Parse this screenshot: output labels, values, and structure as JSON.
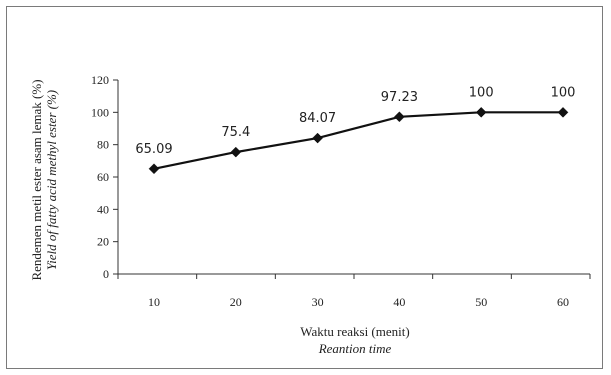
{
  "chart_data": {
    "type": "line",
    "x": [
      10,
      20,
      30,
      40,
      50,
      60
    ],
    "values": [
      65.09,
      75.4,
      84.07,
      97.23,
      100,
      100
    ],
    "data_labels": [
      "65.09",
      "75.4",
      "84.07",
      "97.23",
      "100",
      "100"
    ],
    "xticks": [
      "10",
      "20",
      "30",
      "40",
      "50",
      "60"
    ],
    "yticks": [
      "0",
      "20",
      "40",
      "60",
      "80",
      "100",
      "120"
    ],
    "ylim": [
      0,
      120
    ],
    "xlabel": "Waktu reaksi (menit)",
    "xlabel_italic": "Reantion time",
    "ylabel": "Rendemen metil ester asam lemak (%)",
    "ylabel_italic": "Yield of fatty acid methyl ester    (%)",
    "grid": false,
    "marker": "diamond",
    "line_color": "#111111"
  }
}
